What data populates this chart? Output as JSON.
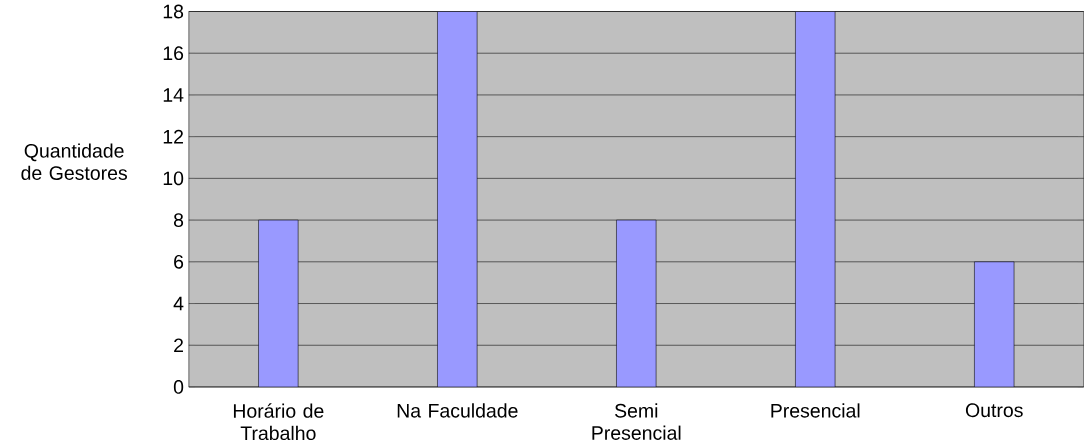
{
  "chart_data": {
    "type": "bar",
    "ylabel": "Quantidade de Gestores",
    "categories": [
      "Horário de Trabalho",
      "Na Faculdade",
      "Semi Presencial",
      "Presencial",
      "Outros"
    ],
    "values": [
      8,
      18,
      8,
      18,
      6
    ],
    "color": "#9999ff",
    "ylim": [
      0,
      18
    ],
    "yticks": [
      0,
      2,
      4,
      6,
      8,
      10,
      12,
      14,
      16,
      18
    ],
    "grid": "y"
  }
}
